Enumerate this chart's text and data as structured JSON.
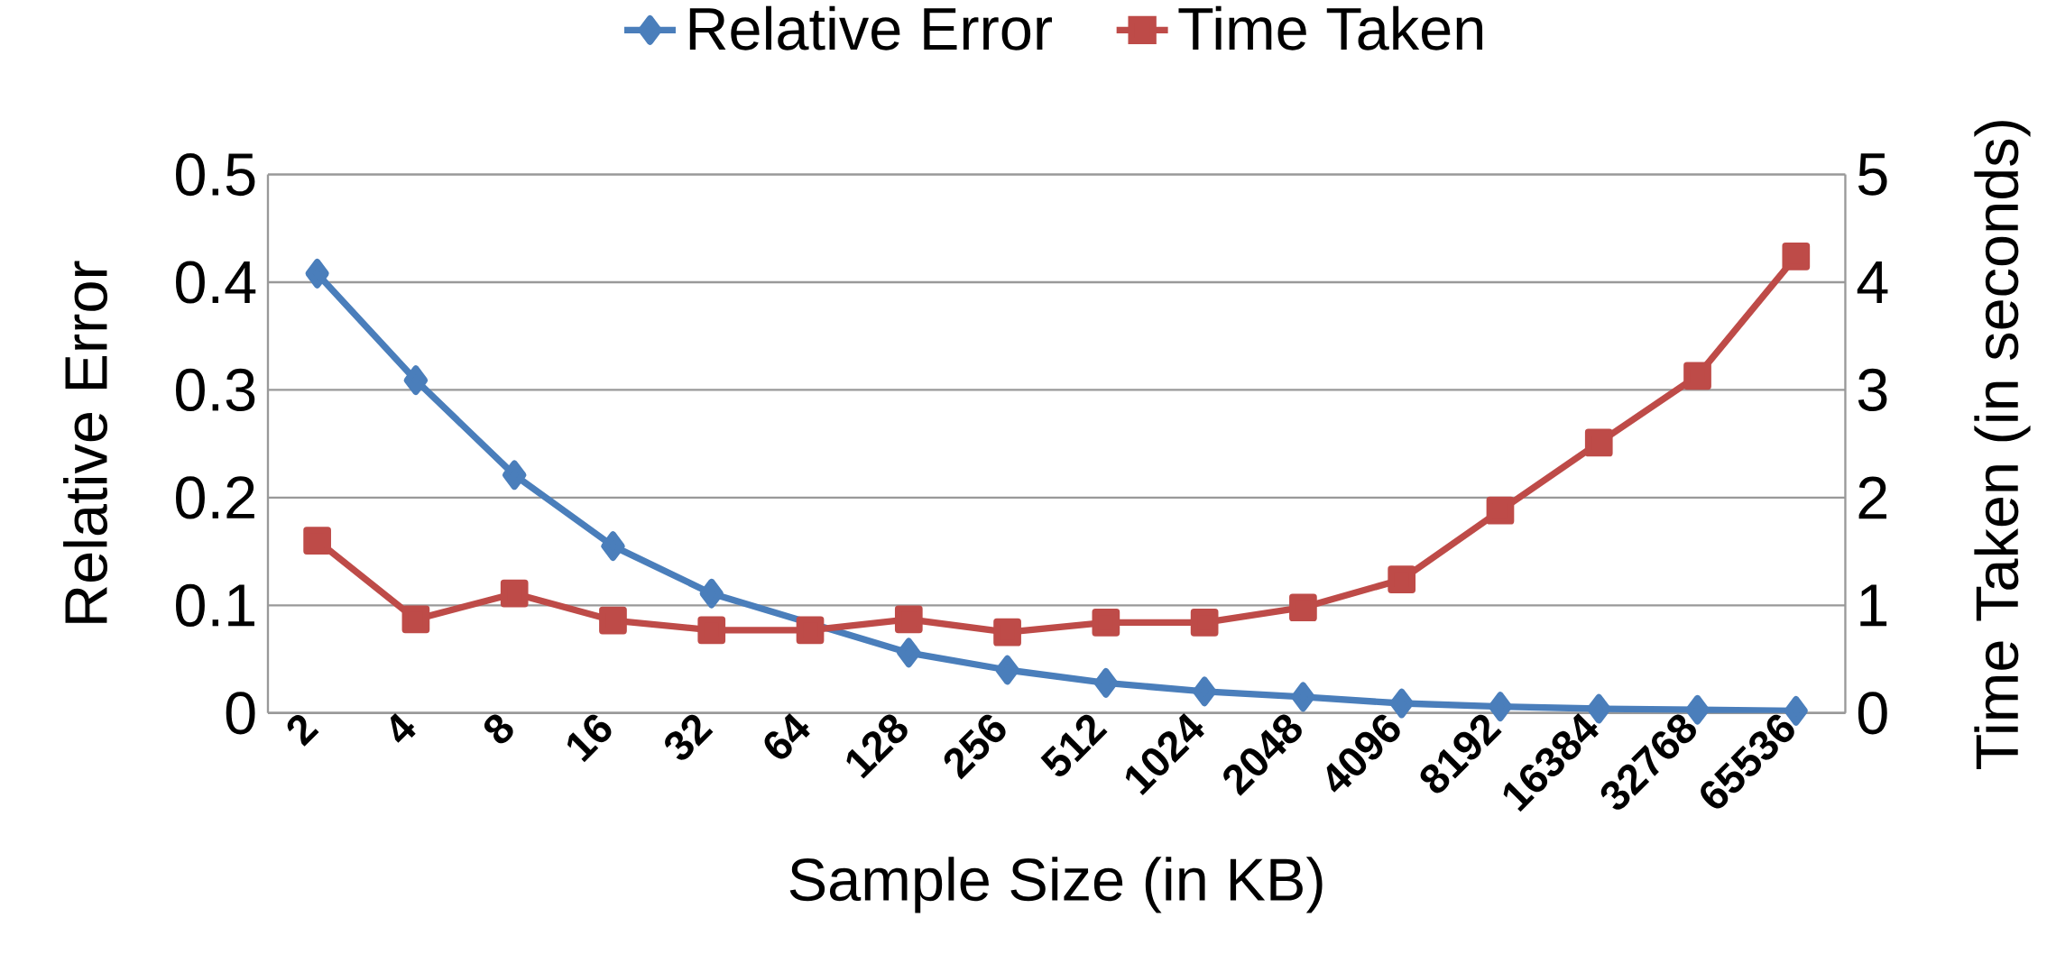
{
  "chart_data": {
    "type": "line",
    "xlabel": "Sample Size (in KB)",
    "ylabel": "Relative Error",
    "y2label": "Time Taken (in seconds)",
    "categories": [
      "2",
      "4",
      "8",
      "16",
      "32",
      "64",
      "128",
      "256",
      "512",
      "1024",
      "2048",
      "4096",
      "8192",
      "16384",
      "32768",
      "65536"
    ],
    "series": [
      {
        "name": "Relative Error",
        "color": "#4a7ebb",
        "marker": "diamond",
        "values": [
          0.408,
          0.309,
          0.221,
          0.155,
          0.111,
          null,
          0.056,
          0.04,
          0.028,
          0.02,
          0.015,
          0.009,
          0.006,
          0.004,
          0.003,
          0.002
        ]
      },
      {
        "name": "Time Taken",
        "color": "#be4b48",
        "marker": "square",
        "axis": "y2",
        "values": [
          1.6,
          0.87,
          1.11,
          0.86,
          0.77,
          0.77,
          0.87,
          0.75,
          0.84,
          0.84,
          0.98,
          1.24,
          1.88,
          2.51,
          3.13,
          4.24
        ]
      }
    ],
    "ylim": [
      0,
      0.5
    ],
    "yticks": [
      0,
      0.1,
      0.2,
      0.3,
      0.4,
      0.5
    ],
    "y2lim": [
      0,
      5
    ],
    "y2ticks": [
      0,
      1,
      2,
      3,
      4,
      5
    ],
    "grid": "y",
    "legend": "top"
  }
}
